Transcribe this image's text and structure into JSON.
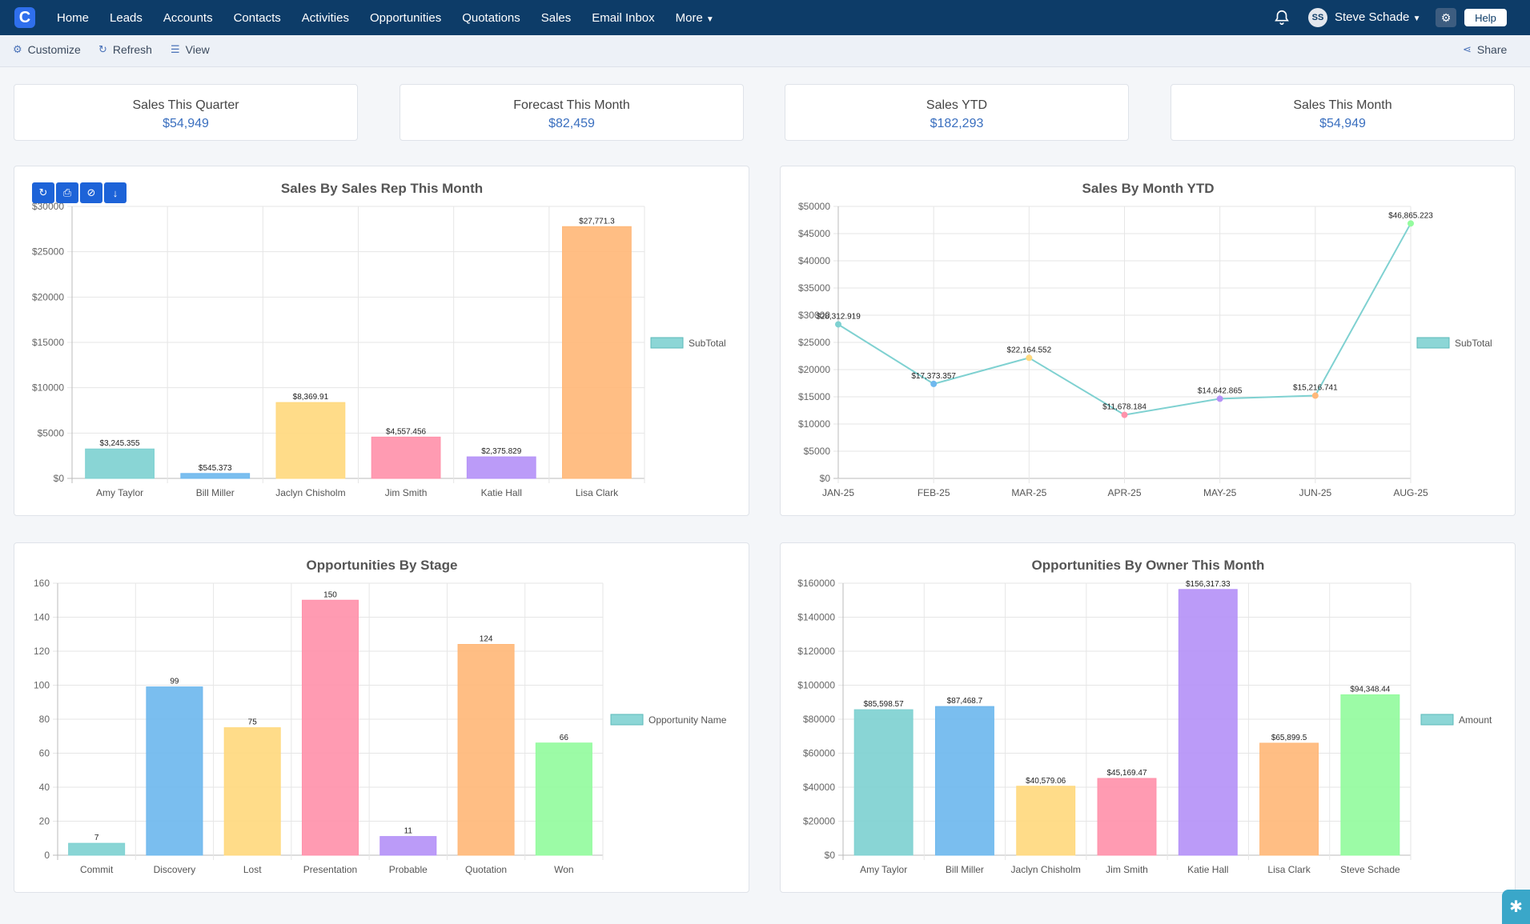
{
  "app": {
    "logo_letter": "C"
  },
  "nav": {
    "items": [
      "Home",
      "Leads",
      "Accounts",
      "Contacts",
      "Activities",
      "Opportunities",
      "Quotations",
      "Sales",
      "Email Inbox"
    ],
    "more_label": "More"
  },
  "user": {
    "initials": "SS",
    "name": "Steve Schade",
    "help_label": "Help"
  },
  "toolbar": {
    "customize": "Customize",
    "refresh": "Refresh",
    "view": "View",
    "share": "Share"
  },
  "kpis": [
    {
      "label": "Sales This Quarter",
      "value": "$54,949"
    },
    {
      "label": "Forecast This Month",
      "value": "$82,459"
    },
    {
      "label": "Sales YTD",
      "value": "$182,293"
    },
    {
      "label": "Sales This Month",
      "value": "$54,949"
    }
  ],
  "colors": {
    "palette": [
      "#7fd1d1",
      "#6fb8ee",
      "#ffd97f",
      "#ff92ab",
      "#b592f7",
      "#ffb87a",
      "#94fb9e"
    ],
    "nav_bg": "#0d3c68",
    "accent": "#3a6fbf"
  },
  "chart_data": [
    {
      "type": "bar",
      "title": "Sales By Sales Rep This Month",
      "categories": [
        "Amy Taylor",
        "Bill Miller",
        "Jaclyn Chisholm",
        "Jim Smith",
        "Katie Hall",
        "Lisa Clark"
      ],
      "series": [
        {
          "name": "SubTotal",
          "values": [
            3245.355,
            545.373,
            8369.91,
            4557.456,
            2375.829,
            27771.3
          ]
        }
      ],
      "data_labels": [
        "$3,245.355",
        "$545.373",
        "$8,369.91",
        "$4,557.456",
        "$2,375.829",
        "$27,771.3"
      ],
      "y_ticks": [
        "$0",
        "$5000",
        "$10000",
        "$15000",
        "$20000",
        "$25000",
        "$30000"
      ],
      "ylim": [
        0,
        30000
      ],
      "legend": "right",
      "grid": true
    },
    {
      "type": "line",
      "title": "Sales By Month YTD",
      "categories": [
        "JAN-25",
        "FEB-25",
        "MAR-25",
        "APR-25",
        "MAY-25",
        "JUN-25",
        "AUG-25"
      ],
      "series": [
        {
          "name": "SubTotal",
          "values": [
            28312.919,
            17373.357,
            22164.552,
            11678.184,
            14642.865,
            15216.741,
            46865.223
          ]
        }
      ],
      "data_labels": [
        "$28,312.919",
        "$17,373.357",
        "$22,164.552",
        "$11,678.184",
        "$14,642.865",
        "$15,216.741",
        "$46,865.223"
      ],
      "y_ticks": [
        "$0",
        "$5000",
        "$10000",
        "$15000",
        "$20000",
        "$25000",
        "$30000",
        "$35000",
        "$40000",
        "$45000",
        "$50000"
      ],
      "ylim": [
        0,
        50000
      ],
      "legend": "right",
      "grid": true
    },
    {
      "type": "bar",
      "title": "Opportunities By Stage",
      "categories": [
        "Commit",
        "Discovery",
        "Lost",
        "Presentation",
        "Probable",
        "Quotation",
        "Won"
      ],
      "series": [
        {
          "name": "Opportunity Name",
          "values": [
            7,
            99,
            75,
            150,
            11,
            124,
            66
          ]
        }
      ],
      "data_labels": [
        "7",
        "99",
        "75",
        "150",
        "11",
        "124",
        "66"
      ],
      "y_ticks": [
        "0",
        "20",
        "40",
        "60",
        "80",
        "100",
        "120",
        "140",
        "160"
      ],
      "ylim": [
        0,
        160
      ],
      "legend": "right",
      "grid": true
    },
    {
      "type": "bar",
      "title": "Opportunities By Owner This Month",
      "categories": [
        "Amy Taylor",
        "Bill Miller",
        "Jaclyn Chisholm",
        "Jim Smith",
        "Katie Hall",
        "Lisa Clark",
        "Steve Schade"
      ],
      "series": [
        {
          "name": "Amount",
          "values": [
            85598.57,
            87468.7,
            40579.06,
            45169.47,
            156317.33,
            65899.5,
            94348.44
          ]
        }
      ],
      "data_labels": [
        "$85,598.57",
        "$87,468.7",
        "$40,579.06",
        "$45,169.47",
        "$156,317.33",
        "$65,899.5",
        "$94,348.44"
      ],
      "y_ticks": [
        "$0",
        "$20000",
        "$40000",
        "$60000",
        "$80000",
        "$100000",
        "$120000",
        "$140000",
        "$160000"
      ],
      "ylim": [
        0,
        160000
      ],
      "legend": "right",
      "grid": true
    }
  ]
}
